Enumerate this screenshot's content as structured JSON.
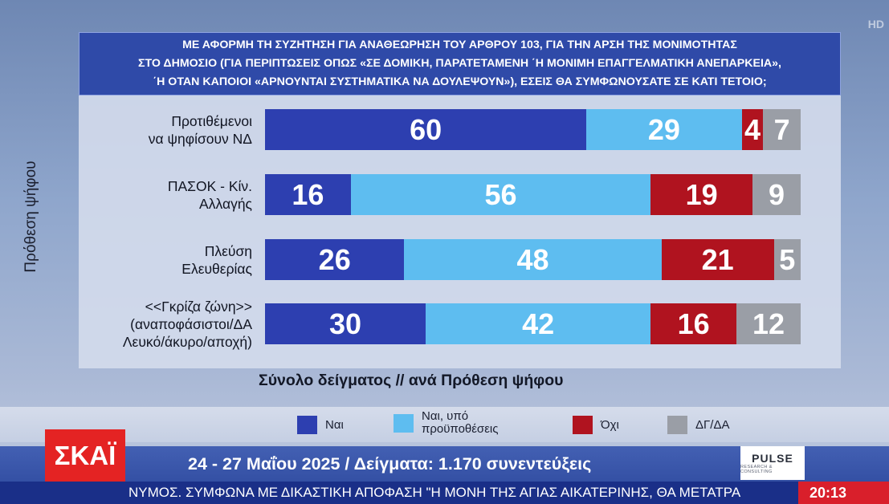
{
  "channel": {
    "hd_mark": "HD",
    "logo_text": "ΣΚΑΪ",
    "clock": "20:13",
    "ticker": "ΝΥΜΟΣ. ΣΥΜΦΩΝΑ ΜΕ ΔΙΚΑΣΤΙΚΗ ΑΠΟΦΑΣΗ \"Η ΜΟΝΗ ΤΗΣ ΑΓΙΑΣ ΑΙΚΑΤΕΡΙΝΗΣ, ΘΑ ΜΕΤΑΤΡΑ",
    "pollster_logo": "PULSE",
    "pollster_sub": "RESEARCH & CONSULTING"
  },
  "info_line": "24 - 27 Μαΐου 2025 / Δείγματα: 1.170 συνεντεύξεις",
  "colors": {
    "yes": "#2d3fb0",
    "yes_conditional": "#5ebdf0",
    "no": "#b0131f",
    "dk_na": "#9a9ea6"
  },
  "chart_data": {
    "type": "bar",
    "orientation": "horizontal",
    "stacked": true,
    "title_lines": [
      "ΜΕ ΑΦΟΡΜΗ ΤΗ ΣΥΖΗΤΗΣΗ ΓΙΑ ΑΝΑΘΕΩΡΗΣΗ ΤΟΥ ΑΡΘΡΟΥ 103, ΓΙΑ ΤΗΝ ΑΡΣΗ ΤΗΣ ΜΟΝΙΜΟΤΗΤΑΣ",
      "ΣΤΟ ΔΗΜΟΣΙΟ (ΓΙΑ ΠΕΡΙΠΤΩΣΕΙΣ ΟΠΩΣ «ΣΕ ΔΟΜΙΚΗ, ΠΑΡΑΤΕΤΑΜΕΝΗ ΄Η ΜΟΝΙΜΗ ΕΠΑΓΓΕΛΜΑΤΙΚΗ ΑΝΕΠΑΡΚΕΙΑ»,",
      "΄Η ΟΤΑΝ ΚΑΠΟΙΟΙ «ΑΡΝΟΥΝΤΑΙ ΣΥΣΤΗΜΑΤΙΚΑ ΝΑ ΔΟΥΛΕΨΟΥΝ»), ΕΣΕΙΣ ΘΑ ΣΥΜΦΩΝΟΥΣΑΤΕ ΣΕ ΚΑΤΙ ΤΕΤΟΙΟ;"
    ],
    "ylabel": "Πρόθεση ψήφου",
    "xlabel": "Σύνολο δείγματος // ανά Πρόθεση ψήφου",
    "xlim": [
      0,
      100
    ],
    "categories": [
      {
        "lines": [
          "Προτιθέμενοι",
          "να ψηφίσουν ΝΔ"
        ]
      },
      {
        "lines": [
          "ΠΑΣΟΚ - Κίν.",
          "Αλλαγής"
        ]
      },
      {
        "lines": [
          "Πλεύση",
          "Ελευθερίας"
        ]
      },
      {
        "lines": [
          "<<Γκρίζα ζώνη>>",
          "(αναποφάσιστοι/ΔΑ",
          "Λευκό/άκυρο/αποχή)"
        ]
      }
    ],
    "series": [
      {
        "name": "Ναι",
        "color": "#2d3fb0",
        "values": [
          60,
          16,
          26,
          30
        ]
      },
      {
        "name": "Ναι, υπό προϋποθέσεις",
        "color": "#5ebdf0",
        "values": [
          29,
          56,
          48,
          42
        ]
      },
      {
        "name": "Όχι",
        "color": "#b0131f",
        "values": [
          4,
          19,
          21,
          16
        ]
      },
      {
        "name": "ΔΓ/ΔΑ",
        "color": "#9a9ea6",
        "values": [
          7,
          9,
          5,
          12
        ]
      }
    ],
    "legend": {
      "position": "bottom",
      "items": [
        {
          "lines": [
            "Ναι"
          ],
          "color": "#2d3fb0"
        },
        {
          "lines": [
            "Ναι, υπό",
            "προϋποθέσεις"
          ],
          "color": "#5ebdf0"
        },
        {
          "lines": [
            "Όχι"
          ],
          "color": "#b0131f"
        },
        {
          "lines": [
            "ΔΓ/ΔΑ"
          ],
          "color": "#9a9ea6"
        }
      ]
    }
  }
}
